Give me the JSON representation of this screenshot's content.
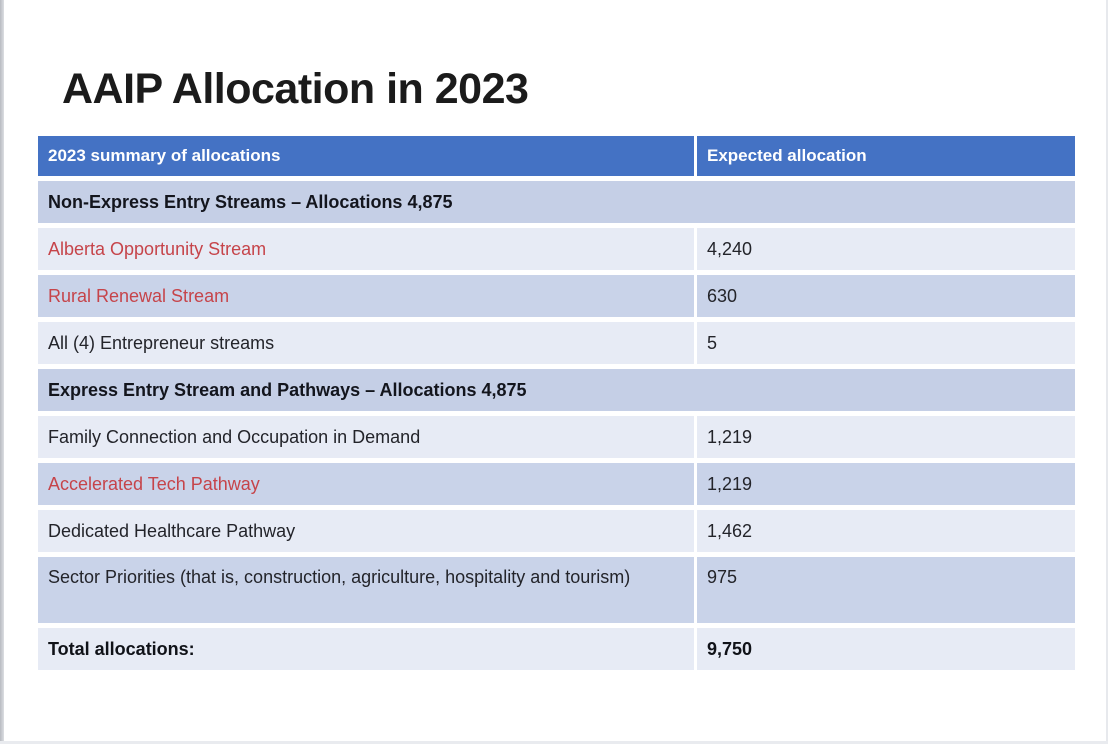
{
  "slide": {
    "title": "AAIP Allocation in 2023"
  },
  "colors": {
    "header_bg": "#4472C4",
    "header_text": "#FFFFFF",
    "section_bg": "#C5CFE6",
    "row_dark_bg": "#C9D3E9",
    "row_light_bg": "#E7EBF5",
    "text_red": "#C6444A",
    "text_dark": "#23242A"
  },
  "table": {
    "columns": [
      {
        "label": "2023 summary of allocations"
      },
      {
        "label": "Expected allocation"
      }
    ],
    "rows": [
      {
        "type": "section",
        "label": "Non-Express Entry Streams – Allocations 4,875",
        "value": ""
      },
      {
        "type": "data",
        "shade": "light",
        "emphasis": "red",
        "label": "Alberta Opportunity Stream",
        "value": "4,240"
      },
      {
        "type": "data",
        "shade": "dark",
        "emphasis": "red",
        "label": "Rural Renewal Stream",
        "value": "630"
      },
      {
        "type": "data",
        "shade": "light",
        "emphasis": "none",
        "label": "All (4) Entrepreneur streams",
        "value": "5"
      },
      {
        "type": "section",
        "label": "Express Entry Stream and Pathways – Allocations 4,875",
        "value": ""
      },
      {
        "type": "data",
        "shade": "light",
        "emphasis": "none",
        "label": "Family Connection and Occupation in Demand",
        "value": "1,219"
      },
      {
        "type": "data",
        "shade": "dark",
        "emphasis": "red",
        "label": "Accelerated Tech Pathway",
        "value": "1,219"
      },
      {
        "type": "data",
        "shade": "light",
        "emphasis": "none",
        "label": "Dedicated Healthcare Pathway",
        "value": "1,462"
      },
      {
        "type": "data",
        "shade": "dark",
        "emphasis": "none",
        "label": "Sector Priorities (that is, construction, agriculture, hospitality and tourism)",
        "value": "975"
      },
      {
        "type": "total",
        "shade": "light",
        "emphasis": "bold",
        "label": "Total allocations:",
        "value": "9,750"
      }
    ]
  }
}
